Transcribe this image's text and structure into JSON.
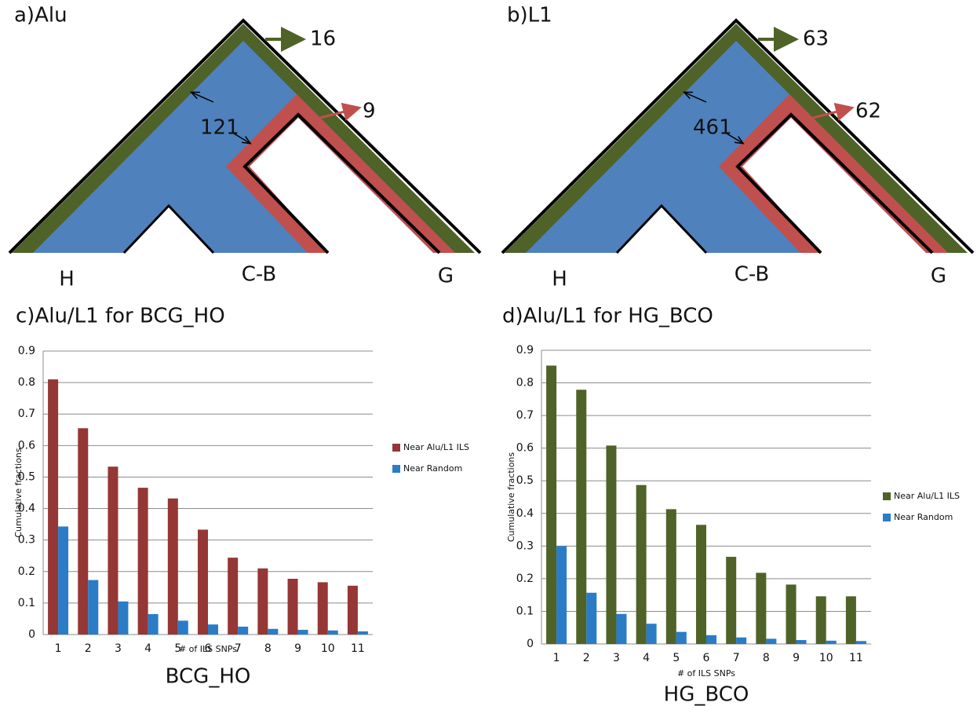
{
  "trees": [
    {
      "label": "a)Alu",
      "outer_count": "16",
      "inner_count": "9",
      "shared_count": "121",
      "leaves": [
        "H",
        "C-B",
        "G"
      ]
    },
    {
      "label": "b)L1",
      "outer_count": "63",
      "inner_count": "62",
      "shared_count": "461",
      "leaves": [
        "H",
        "C-B",
        "G"
      ]
    }
  ],
  "chart_data": [
    {
      "type": "bar",
      "title": "c)Alu/L1 for BCG_HO",
      "caption": "BCG_HO",
      "x_label": "# of ILS SNPs",
      "y_label": "Cumulative fractions",
      "categories": [
        "1",
        "2",
        "3",
        "4",
        "5",
        "6",
        "7",
        "8",
        "9",
        "10",
        "11"
      ],
      "series": [
        {
          "name": "Near Alu/L1 ILS",
          "color": "#953735",
          "values": [
            0.81,
            0.655,
            0.533,
            0.466,
            0.432,
            0.333,
            0.244,
            0.21,
            0.177,
            0.166,
            0.155
          ]
        },
        {
          "name": "Near Random",
          "color": "#2a7cc7",
          "values": [
            0.343,
            0.173,
            0.105,
            0.065,
            0.044,
            0.032,
            0.025,
            0.018,
            0.015,
            0.013,
            0.01
          ]
        }
      ],
      "ylim": [
        0,
        0.9
      ],
      "yticks": [
        0,
        0.1,
        0.2,
        0.3,
        0.4,
        0.5,
        0.6,
        0.7,
        0.8,
        0.9
      ],
      "grid": true,
      "legend": "right"
    },
    {
      "type": "bar",
      "title": "d)Alu/L1 for HG_BCO",
      "caption": "HG_BCO",
      "x_label": "# of ILS SNPs",
      "y_label": "Cumulative fractions",
      "categories": [
        "1",
        "2",
        "3",
        "4",
        "5",
        "6",
        "7",
        "8",
        "9",
        "10",
        "11"
      ],
      "series": [
        {
          "name": "Near Alu/L1 ILS",
          "color": "#4f6228",
          "values": [
            0.853,
            0.779,
            0.608,
            0.487,
            0.413,
            0.365,
            0.267,
            0.218,
            0.182,
            0.146,
            0.146
          ]
        },
        {
          "name": "Near Random",
          "color": "#2a7cc7",
          "values": [
            0.3,
            0.157,
            0.092,
            0.062,
            0.037,
            0.027,
            0.02,
            0.016,
            0.012,
            0.01,
            0.009
          ]
        }
      ],
      "ylim": [
        0,
        0.9
      ],
      "yticks": [
        0,
        0.1,
        0.2,
        0.3,
        0.4,
        0.5,
        0.6,
        0.7,
        0.8,
        0.9
      ],
      "grid": true,
      "legend": "right"
    }
  ]
}
